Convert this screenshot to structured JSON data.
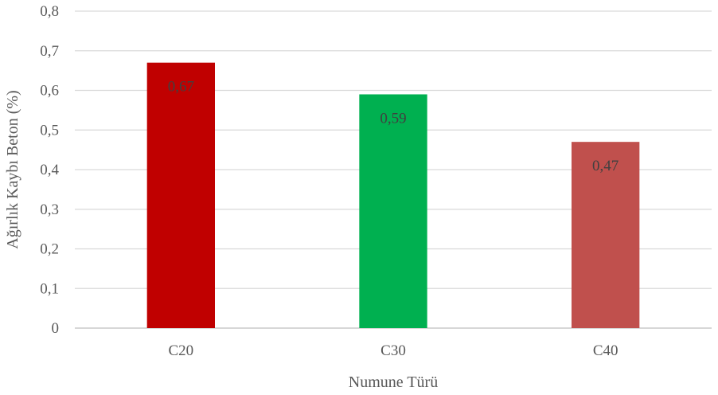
{
  "chart_data": {
    "type": "bar",
    "title": "",
    "xlabel": "Numune Türü",
    "ylabel": "Ağırlık Kaybı Beton (%)",
    "categories": [
      "C20",
      "C30",
      "C40"
    ],
    "values": [
      0.67,
      0.59,
      0.47
    ],
    "value_labels": [
      "0,67",
      "0,59",
      "0,47"
    ],
    "bar_colors": [
      "#c00000",
      "#00b050",
      "#c0504d"
    ],
    "ylim": [
      0,
      0.8
    ],
    "yticks": [
      0,
      0.1,
      0.2,
      0.3,
      0.4,
      0.5,
      0.6,
      0.7,
      0.8
    ],
    "ytick_labels": [
      "0",
      "0,1",
      "0,2",
      "0,3",
      "0,4",
      "0,5",
      "0,6",
      "0,7",
      "0,8"
    ],
    "grid": true,
    "legend": "none"
  }
}
